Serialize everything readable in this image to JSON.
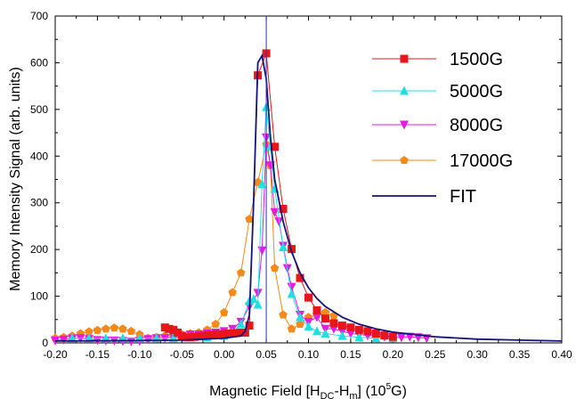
{
  "chart_data": {
    "type": "scatter",
    "xlabel": {
      "main": "Magnetic Field [H",
      "sub1": "DC",
      "mid": "-H",
      "sub2": "m",
      "tail": "] (10",
      "sup": "5",
      "end": "G)"
    },
    "ylabel": "Memory  Intensity Signal (arb. units)",
    "xlim": [
      -0.2,
      0.4
    ],
    "ylim": [
      0,
      700
    ],
    "x_ticks": [
      "-0.20",
      "-0.15",
      "-0.10",
      "-0.05",
      "0.00",
      "0.05",
      "0.10",
      "0.15",
      "0.20",
      "0.25",
      "0.30",
      "0.35",
      "0.40"
    ],
    "y_ticks": [
      "0",
      "100",
      "200",
      "300",
      "400",
      "500",
      "600",
      "700"
    ],
    "vertical_line_x": 0.05,
    "legend_position": "top-right",
    "series": [
      {
        "name": "1500G",
        "color": "#e8151b",
        "marker": "square",
        "line": true,
        "points": [
          [
            -0.07,
            33
          ],
          [
            -0.065,
            30
          ],
          [
            -0.06,
            28
          ],
          [
            -0.055,
            22
          ],
          [
            -0.05,
            15
          ],
          [
            -0.045,
            12
          ],
          [
            -0.04,
            12
          ],
          [
            -0.035,
            13
          ],
          [
            -0.03,
            14
          ],
          [
            -0.025,
            15
          ],
          [
            -0.02,
            16
          ],
          [
            -0.015,
            17
          ],
          [
            -0.01,
            18
          ],
          [
            -0.005,
            19
          ],
          [
            0.0,
            19
          ],
          [
            0.005,
            20
          ],
          [
            0.01,
            20
          ],
          [
            0.015,
            21
          ],
          [
            0.02,
            22
          ],
          [
            0.025,
            22
          ],
          [
            0.03,
            37
          ],
          [
            0.04,
            573
          ],
          [
            0.05,
            620
          ],
          [
            0.06,
            420
          ],
          [
            0.07,
            287
          ],
          [
            0.08,
            201
          ],
          [
            0.09,
            139
          ],
          [
            0.1,
            97
          ],
          [
            0.11,
            70
          ],
          [
            0.12,
            52
          ],
          [
            0.13,
            42
          ],
          [
            0.14,
            37
          ],
          [
            0.15,
            33
          ],
          [
            0.16,
            28
          ],
          [
            0.17,
            25
          ],
          [
            0.18,
            20
          ],
          [
            0.19,
            16
          ],
          [
            0.2,
            13
          ]
        ]
      },
      {
        "name": "5000G",
        "color": "#1ee0e0",
        "marker": "triangle-up",
        "line": true,
        "points": [
          [
            -0.18,
            10
          ],
          [
            -0.16,
            10
          ],
          [
            -0.14,
            10
          ],
          [
            -0.12,
            10
          ],
          [
            -0.1,
            10
          ],
          [
            -0.08,
            10
          ],
          [
            -0.06,
            10
          ],
          [
            -0.04,
            12
          ],
          [
            -0.02,
            12
          ],
          [
            0.0,
            15
          ],
          [
            0.01,
            22
          ],
          [
            0.02,
            40
          ],
          [
            0.03,
            90
          ],
          [
            0.035,
            94
          ],
          [
            0.04,
            82
          ],
          [
            0.045,
            340
          ],
          [
            0.05,
            505
          ],
          [
            0.055,
            420
          ],
          [
            0.06,
            330
          ],
          [
            0.07,
            205
          ],
          [
            0.08,
            105
          ],
          [
            0.09,
            55
          ],
          [
            0.1,
            35
          ],
          [
            0.11,
            25
          ],
          [
            0.12,
            20
          ],
          [
            0.14,
            15
          ],
          [
            0.16,
            12
          ],
          [
            0.18,
            10
          ],
          [
            0.2,
            10
          ]
        ]
      },
      {
        "name": "8000G",
        "color": "#e619e6",
        "marker": "triangle-down",
        "line": true,
        "points": [
          [
            -0.2,
            5
          ],
          [
            -0.19,
            7
          ],
          [
            -0.18,
            9
          ],
          [
            -0.17,
            10
          ],
          [
            -0.16,
            8
          ],
          [
            -0.15,
            6
          ],
          [
            -0.14,
            5
          ],
          [
            -0.13,
            5
          ],
          [
            -0.12,
            4
          ],
          [
            -0.11,
            3
          ],
          [
            -0.1,
            4
          ],
          [
            -0.09,
            8
          ],
          [
            -0.08,
            10
          ],
          [
            -0.07,
            10
          ],
          [
            -0.06,
            12
          ],
          [
            -0.05,
            15
          ],
          [
            -0.04,
            18
          ],
          [
            -0.03,
            18
          ],
          [
            -0.02,
            20
          ],
          [
            -0.01,
            22
          ],
          [
            0.0,
            25
          ],
          [
            0.01,
            30
          ],
          [
            0.02,
            45
          ],
          [
            0.03,
            78
          ],
          [
            0.04,
            107
          ],
          [
            0.045,
            198
          ],
          [
            0.05,
            440
          ],
          [
            0.055,
            380
          ],
          [
            0.06,
            280
          ],
          [
            0.065,
            260
          ],
          [
            0.07,
            208
          ],
          [
            0.075,
            160
          ],
          [
            0.08,
            120
          ],
          [
            0.09,
            60
          ],
          [
            0.1,
            45
          ],
          [
            0.11,
            55
          ],
          [
            0.12,
            30
          ],
          [
            0.13,
            30
          ],
          [
            0.14,
            25
          ],
          [
            0.15,
            20
          ],
          [
            0.16,
            18
          ],
          [
            0.17,
            16
          ],
          [
            0.18,
            14
          ],
          [
            0.19,
            13
          ],
          [
            0.2,
            12
          ],
          [
            0.21,
            12
          ],
          [
            0.22,
            13
          ],
          [
            0.23,
            12
          ],
          [
            0.24,
            10
          ]
        ]
      },
      {
        "name": "17000G",
        "color": "#f5891a",
        "marker": "pentagon",
        "line": true,
        "points": [
          [
            -0.2,
            10
          ],
          [
            -0.19,
            12
          ],
          [
            -0.18,
            15
          ],
          [
            -0.17,
            20
          ],
          [
            -0.16,
            24
          ],
          [
            -0.15,
            27
          ],
          [
            -0.14,
            30
          ],
          [
            -0.13,
            32
          ],
          [
            -0.12,
            30
          ],
          [
            -0.11,
            25
          ],
          [
            -0.1,
            18
          ],
          [
            -0.09,
            10
          ],
          [
            -0.08,
            12
          ],
          [
            -0.07,
            15
          ],
          [
            -0.06,
            15
          ],
          [
            -0.05,
            18
          ],
          [
            -0.04,
            20
          ],
          [
            -0.03,
            22
          ],
          [
            -0.02,
            28
          ],
          [
            -0.01,
            40
          ],
          [
            0.0,
            65
          ],
          [
            0.01,
            108
          ],
          [
            0.02,
            150
          ],
          [
            0.03,
            265
          ],
          [
            0.04,
            344
          ],
          [
            0.05,
            425
          ],
          [
            0.055,
            380
          ],
          [
            0.06,
            160
          ],
          [
            0.07,
            60
          ],
          [
            0.08,
            30
          ],
          [
            0.09,
            40
          ],
          [
            0.1,
            55
          ],
          [
            0.11,
            60
          ],
          [
            0.12,
            65
          ],
          [
            0.13,
            58
          ]
        ]
      },
      {
        "name": "FIT",
        "color": "#14147a",
        "marker": "none",
        "line": true,
        "points": [
          [
            -0.2,
            4
          ],
          [
            -0.1,
            5
          ],
          [
            -0.05,
            6
          ],
          [
            0.0,
            10
          ],
          [
            0.02,
            15
          ],
          [
            0.025,
            25
          ],
          [
            0.03,
            60
          ],
          [
            0.035,
            300
          ],
          [
            0.04,
            600
          ],
          [
            0.045,
            615
          ],
          [
            0.05,
            565
          ],
          [
            0.055,
            440
          ],
          [
            0.06,
            350
          ],
          [
            0.07,
            260
          ],
          [
            0.08,
            195
          ],
          [
            0.09,
            150
          ],
          [
            0.1,
            118
          ],
          [
            0.11,
            95
          ],
          [
            0.12,
            78
          ],
          [
            0.14,
            55
          ],
          [
            0.16,
            40
          ],
          [
            0.18,
            30
          ],
          [
            0.2,
            23
          ],
          [
            0.25,
            13
          ],
          [
            0.3,
            8
          ],
          [
            0.35,
            6
          ],
          [
            0.4,
            4
          ]
        ]
      }
    ]
  }
}
